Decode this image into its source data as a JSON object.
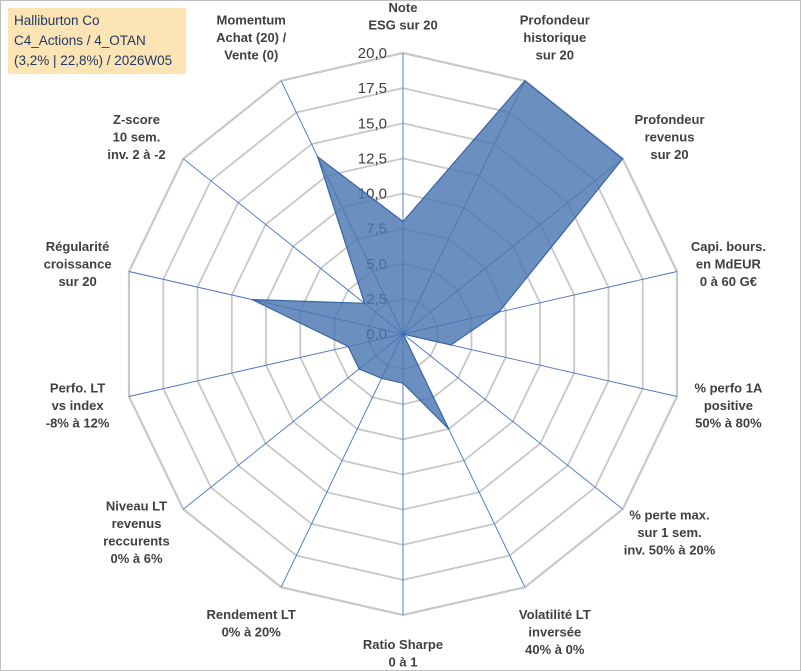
{
  "title": {
    "line1": "Halliburton Co",
    "line2": "C4_Actions / 4_OTAN",
    "line3": "(3,2% | 22,8%) / 2026W05"
  },
  "colors": {
    "fill": "#4a76b0",
    "stroke": "#3a64a8",
    "grid": "#c8c8c8",
    "spoke": "#4472c4",
    "title_bg": "#fce4b4",
    "title_text": "#1f3864"
  },
  "chart_data": {
    "type": "radar",
    "r_min": 0,
    "r_max": 20,
    "tick_labels": [
      "0,0",
      "2,5",
      "5,0",
      "7,5",
      "10,0",
      "12,5",
      "15,0",
      "17,5",
      "20,0"
    ],
    "tick_values": [
      0,
      2.5,
      5,
      7.5,
      10,
      12.5,
      15,
      17.5,
      20
    ],
    "axes": [
      {
        "lines": [
          "Note",
          "ESG sur 20"
        ],
        "value": 8
      },
      {
        "lines": [
          "Profondeur",
          "historique",
          "sur 20"
        ],
        "value": 20
      },
      {
        "lines": [
          "Profondeur",
          "revenus",
          "sur 20"
        ],
        "value": 20
      },
      {
        "lines": [
          "Capi. bours.",
          "en MdEUR",
          "0 à 60 G€"
        ],
        "value": 7
      },
      {
        "lines": [
          "% perfo 1A",
          "positive",
          "50% à 80%"
        ],
        "value": 3.5
      },
      {
        "lines": [
          "% perte max.",
          "sur 1 sem.",
          "inv. 50% à 20%"
        ],
        "value": 0
      },
      {
        "lines": [
          "Volatilité LT",
          "inversée",
          "40% à 0%"
        ],
        "value": 7.5
      },
      {
        "lines": [
          "Ratio Sharpe",
          "0 à 1"
        ],
        "value": 3.5
      },
      {
        "lines": [
          "Rendement LT",
          "0% à 20%"
        ],
        "value": 3.5
      },
      {
        "lines": [
          "Niveau LT",
          "revenus",
          "reccurents",
          "0% à 6%"
        ],
        "value": 4
      },
      {
        "lines": [
          "Perfo. LT",
          "vs index",
          "-8% à 12%"
        ],
        "value": 4
      },
      {
        "lines": [
          "Régularité",
          "croissance",
          "sur 20"
        ],
        "value": 11
      },
      {
        "lines": [
          "Z-score",
          "10 sem.",
          "inv. 2 à -2"
        ],
        "value": 3.5
      },
      {
        "lines": [
          "Momentum",
          "Achat (20) /",
          "Vente (0)"
        ],
        "value": 14
      }
    ]
  }
}
